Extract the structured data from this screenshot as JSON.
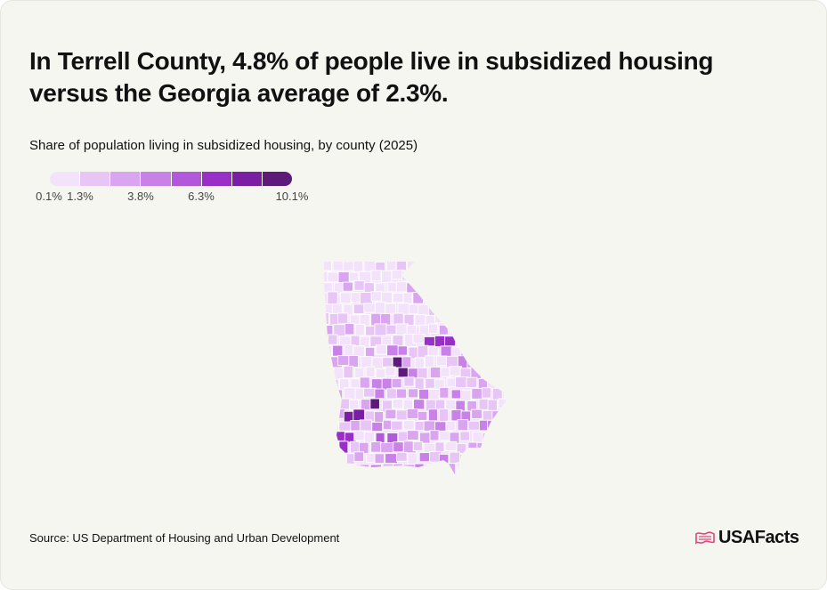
{
  "title": "In Terrell County, 4.8% of people live in subsidized housing versus the Georgia average of 2.3%.",
  "subtitle": "Share of population living in subsidized housing, by county (2025)",
  "legend": {
    "colors": [
      "#f3e3fa",
      "#e7c5f5",
      "#d9a5ee",
      "#c881e6",
      "#b259db",
      "#9830c8",
      "#7a1fa4",
      "#5d1a78"
    ],
    "ticks": [
      {
        "label": "0.1%",
        "value": 0.1
      },
      {
        "label": "1.3%",
        "value": 1.3
      },
      {
        "label": "3.8%",
        "value": 3.8
      },
      {
        "label": "6.3%",
        "value": 6.3
      },
      {
        "label": "10.1%",
        "value": 10.1
      }
    ],
    "min": 0.1,
    "max": 10.1
  },
  "map": {
    "region": "Georgia",
    "unit": "counties",
    "highlight_county": "Terrell County",
    "highlight_value": 4.8,
    "state_average": 2.3
  },
  "source": "Source: US Department of Housing and Urban Development",
  "logo": {
    "text": "USAFacts",
    "icon": "usa-flag-icon",
    "icon_color": "#e0457b"
  }
}
